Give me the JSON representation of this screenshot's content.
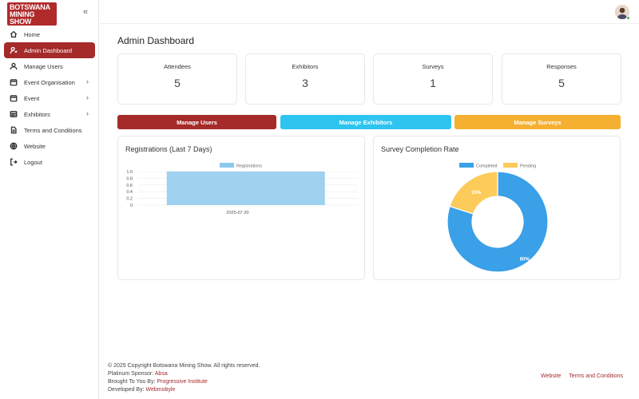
{
  "brand": {
    "line1": "BOTSWANA",
    "line2": "MINING",
    "line3": "SHOW"
  },
  "sidebar": {
    "collapse_icon": "«",
    "items": [
      {
        "label": "Home",
        "icon": "home-icon"
      },
      {
        "label": "Admin Dashboard",
        "icon": "admin-icon",
        "active": true
      },
      {
        "label": "Manage Users",
        "icon": "user-icon"
      },
      {
        "label": "Event Organisation",
        "icon": "calendar-icon",
        "chevron": "›"
      },
      {
        "label": "Event",
        "icon": "calendar-icon",
        "chevron": "›"
      },
      {
        "label": "Exhibitors",
        "icon": "grid-icon",
        "chevron": "›"
      },
      {
        "label": "Terms and Conditions",
        "icon": "document-icon"
      },
      {
        "label": "Website",
        "icon": "globe-icon"
      },
      {
        "label": "Logout",
        "icon": "logout-icon"
      }
    ]
  },
  "main": {
    "title": "Admin Dashboard"
  },
  "stats": [
    {
      "label": "Attendees",
      "value": "5"
    },
    {
      "label": "Exhibitors",
      "value": "3"
    },
    {
      "label": "Surveys",
      "value": "1"
    },
    {
      "label": "Responses",
      "value": "5"
    }
  ],
  "actions": [
    {
      "label": "Manage Users",
      "color": "#a52a2a"
    },
    {
      "label": "Manage Exhibitors",
      "color": "#2ec4f0"
    },
    {
      "label": "Manage Surveys",
      "color": "#f5b031"
    }
  ],
  "chart_data": [
    {
      "type": "bar",
      "title": "Registrations (Last 7 Days)",
      "categories": [
        "2025-07-20"
      ],
      "series": [
        {
          "name": "Registrations",
          "values": [
            1
          ],
          "color": "#8ec9ee"
        }
      ],
      "ylim": [
        0,
        1
      ],
      "yticks": [
        "1.0",
        "0.8",
        "0.6",
        "0.4",
        "0.2",
        "0"
      ]
    },
    {
      "type": "pie",
      "title": "Survey Completion Rate",
      "labels": [
        "Completed",
        "Pending"
      ],
      "values": [
        80,
        20
      ],
      "value_labels": [
        "80%",
        "20%"
      ],
      "colors": [
        "#3aa0e8",
        "#fdcb5a"
      ]
    }
  ],
  "footer": {
    "copyright": "© 2025 Copyright Botswana Mining Show. All rights reserved.",
    "sponsor_label": "Platinum Sponsor: ",
    "sponsor": "Absa",
    "brought_label": "Brought To You By: ",
    "brought": "Progressive Institute",
    "dev_label": "Developed By: ",
    "dev": "Webmobyle",
    "links": [
      "Website",
      "Terms and Conditions"
    ]
  }
}
